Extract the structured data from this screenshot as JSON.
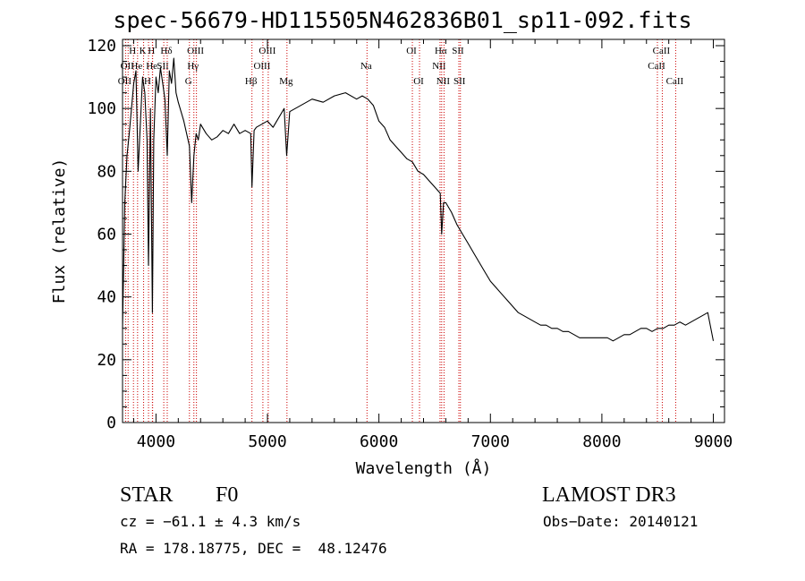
{
  "chart_data": {
    "type": "line",
    "title": "spec-56679-HD115505N462836B01_sp11-092.fits",
    "xlabel": "Wavelength (Å)",
    "ylabel": "Flux (relative)",
    "xlim": [
      3700,
      9100
    ],
    "ylim": [
      0,
      122
    ],
    "xticks": [
      "4000",
      "5000",
      "6000",
      "7000",
      "8000",
      "9000"
    ],
    "yticks": [
      "0",
      "20",
      "40",
      "60",
      "80",
      "100",
      "120"
    ],
    "grid": false,
    "series": [
      {
        "x": [
          3700,
          3720,
          3740,
          3760,
          3780,
          3800,
          3820,
          3840,
          3860,
          3880,
          3900,
          3920,
          3933,
          3950,
          3968,
          3980,
          4000,
          4020,
          4040,
          4060,
          4080,
          4101,
          4120,
          4140,
          4160,
          4180,
          4200,
          4250,
          4300,
          4320,
          4340,
          4360,
          4380,
          4400,
          4450,
          4500,
          4550,
          4600,
          4650,
          4700,
          4750,
          4800,
          4850,
          4861,
          4880,
          4900,
          4950,
          5000,
          5050,
          5100,
          5150,
          5172,
          5200,
          5300,
          5400,
          5500,
          5600,
          5700,
          5800,
          5850,
          5900,
          5950,
          6000,
          6050,
          6100,
          6150,
          6200,
          6250,
          6300,
          6350,
          6400,
          6450,
          6500,
          6550,
          6563,
          6580,
          6600,
          6650,
          6700,
          6750,
          6800,
          6850,
          6900,
          6950,
          7000,
          7050,
          7100,
          7150,
          7200,
          7250,
          7300,
          7350,
          7400,
          7450,
          7500,
          7550,
          7600,
          7650,
          7700,
          7750,
          7800,
          7850,
          7900,
          7950,
          8000,
          8050,
          8100,
          8150,
          8200,
          8250,
          8300,
          8350,
          8400,
          8450,
          8500,
          8550,
          8600,
          8650,
          8700,
          8750,
          8800,
          8850,
          8900,
          8950,
          9000
        ],
        "values": [
          30,
          70,
          85,
          92,
          100,
          108,
          112,
          80,
          95,
          110,
          105,
          90,
          50,
          100,
          35,
          90,
          110,
          105,
          113,
          108,
          103,
          85,
          112,
          108,
          116,
          105,
          102,
          96,
          88,
          70,
          85,
          92,
          90,
          95,
          92,
          90,
          91,
          93,
          92,
          95,
          92,
          93,
          92,
          75,
          93,
          94,
          95,
          96,
          94,
          97,
          100,
          85,
          99,
          101,
          103,
          102,
          104,
          105,
          103,
          104,
          103,
          101,
          96,
          94,
          90,
          88,
          86,
          84,
          83,
          80,
          79,
          77,
          75,
          73,
          60,
          70,
          70,
          67,
          63,
          60,
          57,
          54,
          51,
          48,
          45,
          43,
          41,
          39,
          37,
          35,
          34,
          33,
          32,
          31,
          31,
          30,
          30,
          29,
          29,
          28,
          27,
          27,
          27,
          27,
          27,
          27,
          26,
          27,
          28,
          28,
          29,
          30,
          30,
          29,
          30,
          30,
          31,
          31,
          32,
          31,
          32,
          33,
          34,
          35,
          26
        ]
      }
    ],
    "lines": [
      {
        "x": 3727,
        "label": "OII",
        "row": 3
      },
      {
        "x": 3750,
        "label": "OII",
        "row": 2
      },
      {
        "x": 3798,
        "label": "H",
        "row": 1
      },
      {
        "x": 3835,
        "label": "He",
        "row": 2
      },
      {
        "x": 3889,
        "label": "K",
        "row": 1
      },
      {
        "x": 3933,
        "label": "H",
        "row": 3
      },
      {
        "x": 3968,
        "label": "H",
        "row": 1
      },
      {
        "x": 3970,
        "label": "He",
        "row": 2
      },
      {
        "x": 4070,
        "label": "SII",
        "row": 2
      },
      {
        "x": 4101,
        "label": "Hδ",
        "row": 1
      },
      {
        "x": 4300,
        "label": "G",
        "row": 3
      },
      {
        "x": 4340,
        "label": "Hγ",
        "row": 2
      },
      {
        "x": 4363,
        "label": "OIII",
        "row": 1
      },
      {
        "x": 4861,
        "label": "Hβ",
        "row": 3
      },
      {
        "x": 4959,
        "label": "OIII",
        "row": 2
      },
      {
        "x": 5007,
        "label": "OIII",
        "row": 1
      },
      {
        "x": 5175,
        "label": "Mg",
        "row": 3
      },
      {
        "x": 5893,
        "label": "Na",
        "row": 2
      },
      {
        "x": 6300,
        "label": "OI",
        "row": 1
      },
      {
        "x": 6364,
        "label": "OI",
        "row": 3
      },
      {
        "x": 6548,
        "label": "NII",
        "row": 2
      },
      {
        "x": 6563,
        "label": "Hα",
        "row": 1
      },
      {
        "x": 6584,
        "label": "NII",
        "row": 3
      },
      {
        "x": 6717,
        "label": "SII",
        "row": 1
      },
      {
        "x": 6731,
        "label": "SII",
        "row": 3
      },
      {
        "x": 8498,
        "label": "CaII",
        "row": 2
      },
      {
        "x": 8542,
        "label": "CaII",
        "row": 1
      },
      {
        "x": 8662,
        "label": "CaII",
        "row": 3
      }
    ],
    "line_color": "#cc0000"
  },
  "info": {
    "object_class": "STAR",
    "subclass": "F0",
    "survey": "LAMOST DR3",
    "cz": "cz = −61.1 ± 4.3 km/s",
    "obs_date": "Obs−Date: 20140121",
    "coords": "RA = 178.18775, DEC =  48.12476"
  }
}
